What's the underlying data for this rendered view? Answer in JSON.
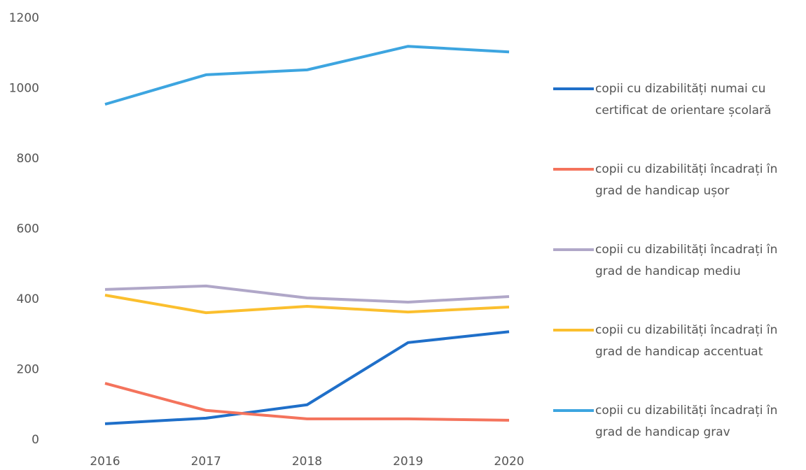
{
  "chart_data": {
    "type": "line",
    "x": [
      "2016",
      "2017",
      "2018",
      "2019",
      "2020"
    ],
    "ylim": [
      0,
      1200
    ],
    "yticks": [
      0,
      200,
      400,
      600,
      800,
      1000,
      1200
    ],
    "legend": "right",
    "series": [
      {
        "name": "copii cu dizabilități numai cu certificat de orientare școlară",
        "color": "#1f6fc9",
        "values": [
          46,
          62,
          100,
          277,
          308
        ]
      },
      {
        "name": "copii cu dizabilități încadrați în grad de handicap ușor",
        "color": "#f4735c",
        "values": [
          161,
          84,
          60,
          60,
          56
        ]
      },
      {
        "name": "copii cu dizabilități încadrați în grad de handicap mediu",
        "color": "#b0a7c8",
        "values": [
          428,
          438,
          404,
          392,
          408
        ]
      },
      {
        "name": "copii cu dizabilități încadrați în grad de handicap accentuat",
        "color": "#fbbf2e",
        "values": [
          412,
          362,
          380,
          364,
          378
        ]
      },
      {
        "name": "copii cu dizabilități încadrați în grad de handicap grav",
        "color": "#3da5e0",
        "values": [
          955,
          1039,
          1053,
          1120,
          1104
        ]
      }
    ]
  }
}
